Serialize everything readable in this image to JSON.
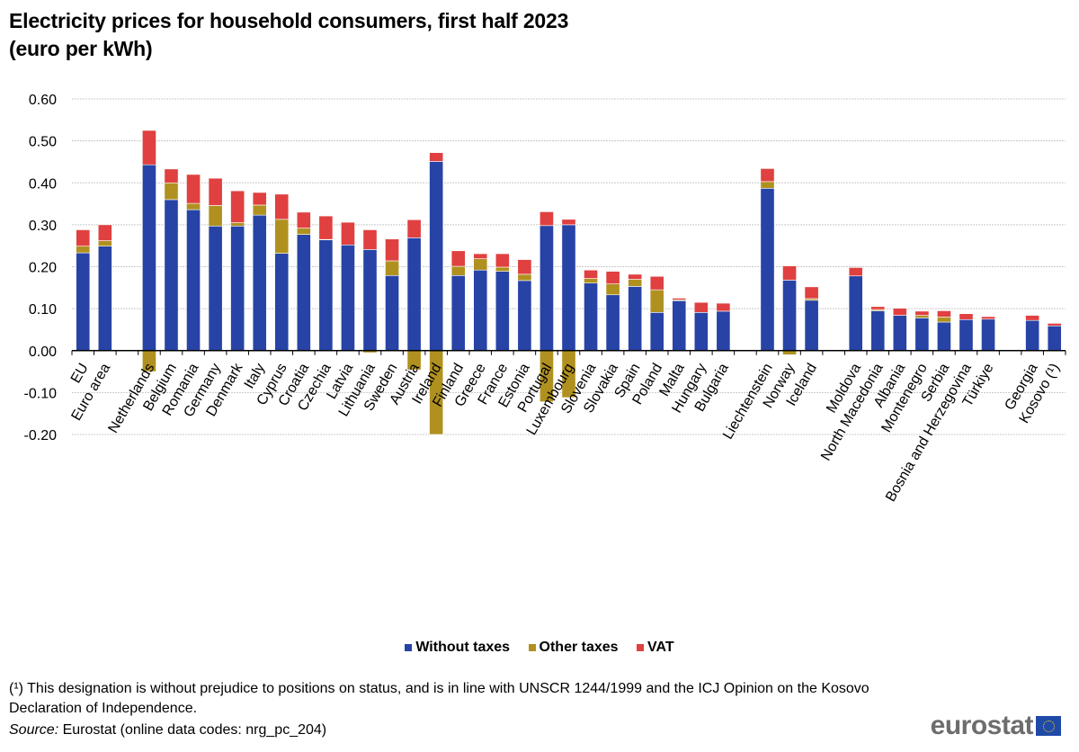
{
  "title_line1": "Electricity prices for household consumers, first half 2023",
  "title_line2": "(euro per kWh)",
  "legend": [
    {
      "label": "Without taxes",
      "color": "#2743a6"
    },
    {
      "label": "Other taxes",
      "color": "#b09120"
    },
    {
      "label": "VAT",
      "color": "#e04040"
    }
  ],
  "footnote": "(¹) This designation is without prejudice to positions on status, and is in line with UNSCR 1244/1999 and the ICJ Opinion on the Kosovo Declaration of Independence.",
  "source_label": "Source:",
  "source_text": " Eurostat (online data codes: nrg_pc_204)",
  "logo_text": "eurostat",
  "chart_data": {
    "type": "bar",
    "stacked": true,
    "title": "Electricity prices for household consumers, first half 2023 (euro per kWh)",
    "xlabel": "",
    "ylabel": "",
    "ylim": [
      -0.2,
      0.6
    ],
    "yticks": [
      0.6,
      0.5,
      0.4,
      0.3,
      0.2,
      0.1,
      0.0,
      -0.1,
      -0.2
    ],
    "ytick_labels": [
      "0.60",
      "0.50",
      "0.40",
      "0.30",
      "0.20",
      "0.10",
      "0.00",
      "-0.10",
      "-0.20"
    ],
    "grid": true,
    "legend_position": "bottom",
    "groups": [
      [
        "EU",
        "Euro area"
      ],
      [
        "Netherlands",
        "Belgium",
        "Romania",
        "Germany",
        "Denmark",
        "Italy",
        "Cyprus",
        "Croatia",
        "Czechia",
        "Latvia",
        "Lithuania",
        "Sweden",
        "Austria",
        "Ireland",
        "Finland",
        "Greece",
        "France",
        "Estonia",
        "Portugal",
        "Luxembourg",
        "Slovenia",
        "Slovakia",
        "Spain",
        "Poland",
        "Malta",
        "Hungary",
        "Bulgaria"
      ],
      [
        "Liechtenstein",
        "Norway",
        "Iceland"
      ],
      [
        "Moldova",
        "North Macedonia",
        "Albania",
        "Montenegro",
        "Serbia",
        "Bosnia and Herzegovina",
        "Türkiye"
      ],
      [
        "Georgia",
        "Kosovo (¹)"
      ]
    ],
    "categories": [
      "EU",
      "Euro area",
      "Netherlands",
      "Belgium",
      "Romania",
      "Germany",
      "Denmark",
      "Italy",
      "Cyprus",
      "Croatia",
      "Czechia",
      "Latvia",
      "Lithuania",
      "Sweden",
      "Austria",
      "Ireland",
      "Finland",
      "Greece",
      "France",
      "Estonia",
      "Portugal",
      "Luxembourg",
      "Slovenia",
      "Slovakia",
      "Spain",
      "Poland",
      "Malta",
      "Hungary",
      "Bulgaria",
      "Liechtenstein",
      "Norway",
      "Iceland",
      "Moldova",
      "North Macedonia",
      "Albania",
      "Montenegro",
      "Serbia",
      "Bosnia and Herzegovina",
      "Türkiye",
      "Georgia",
      "Kosovo (¹)"
    ],
    "series": [
      {
        "name": "Without taxes",
        "color": "#2743a6",
        "values": [
          0.233,
          0.249,
          0.443,
          0.36,
          0.336,
          0.297,
          0.297,
          0.323,
          0.232,
          0.277,
          0.264,
          0.252,
          0.241,
          0.179,
          0.269,
          0.451,
          0.179,
          0.192,
          0.189,
          0.167,
          0.298,
          0.3,
          0.161,
          0.133,
          0.153,
          0.091,
          0.119,
          0.091,
          0.094,
          0.387,
          0.168,
          0.12,
          0.178,
          0.095,
          0.084,
          0.078,
          0.068,
          0.074,
          0.075,
          0.072,
          0.059
        ]
      },
      {
        "name": "Other taxes",
        "color": "#b09120",
        "values": [
          0.016,
          0.013,
          -0.05,
          0.04,
          0.015,
          0.049,
          0.008,
          0.024,
          0.081,
          0.015,
          0.001,
          0.0,
          -0.005,
          0.035,
          -0.046,
          -0.2,
          0.022,
          0.027,
          0.01,
          0.015,
          -0.122,
          -0.112,
          0.011,
          0.026,
          0.017,
          0.054,
          0.002,
          0.0,
          0.0,
          0.016,
          -0.01,
          0.004,
          0.0,
          0.003,
          0.0,
          0.006,
          0.012,
          0.0,
          0.0,
          0.0,
          0.0
        ]
      },
      {
        "name": "VAT",
        "color": "#e04040",
        "values": [
          0.039,
          0.038,
          0.082,
          0.033,
          0.069,
          0.065,
          0.076,
          0.03,
          0.06,
          0.038,
          0.056,
          0.054,
          0.047,
          0.052,
          0.043,
          0.021,
          0.037,
          0.012,
          0.032,
          0.035,
          0.033,
          0.013,
          0.02,
          0.03,
          0.012,
          0.032,
          0.004,
          0.024,
          0.019,
          0.031,
          0.034,
          0.028,
          0.02,
          0.007,
          0.017,
          0.01,
          0.015,
          0.014,
          0.006,
          0.012,
          0.006
        ]
      }
    ]
  }
}
